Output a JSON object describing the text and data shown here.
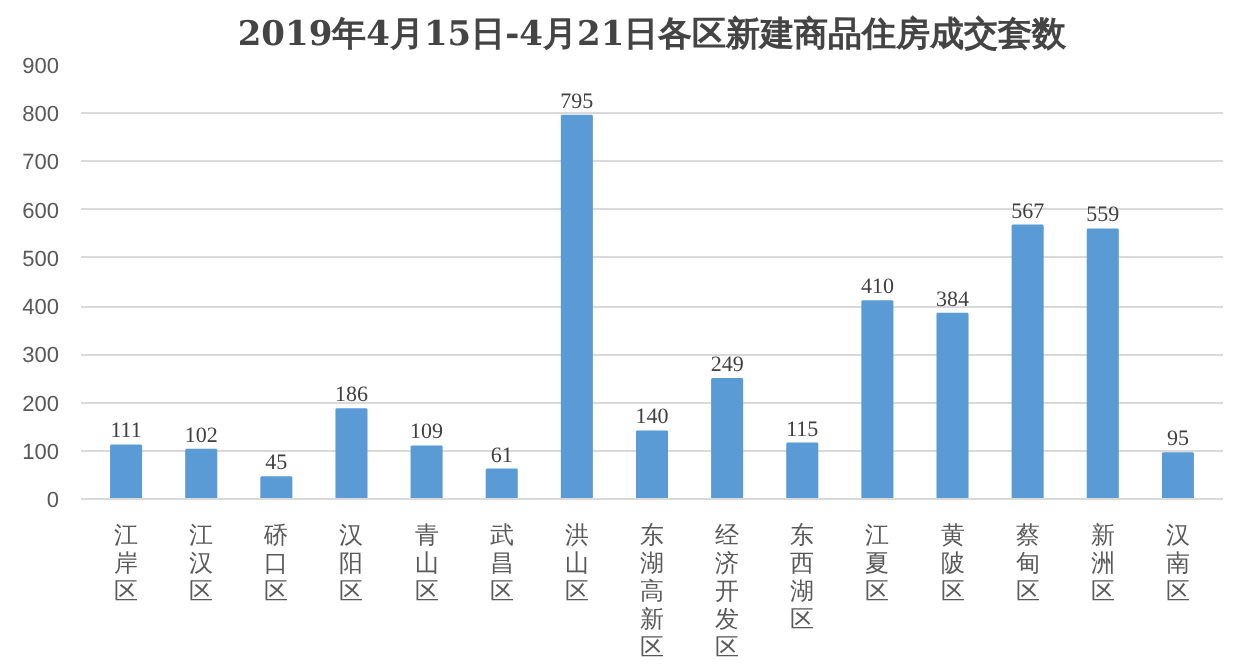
{
  "chart_data": {
    "type": "bar",
    "title": "2019年4月15日-4月21日各区新建商品住房成交套数",
    "categories": [
      "江岸区",
      "江汉区",
      "硚口区",
      "汉阳区",
      "青山区",
      "武昌区",
      "洪山区",
      "东湖高新区",
      "经济开发区",
      "东西湖区",
      "江夏区",
      "黄陂区",
      "蔡甸区",
      "新洲区",
      "汉南区"
    ],
    "values": [
      111,
      102,
      45,
      186,
      109,
      61,
      795,
      140,
      249,
      115,
      410,
      384,
      567,
      559,
      95
    ],
    "color": "#5b9bd5",
    "ylim": [
      0,
      900
    ],
    "yticks": [
      0,
      100,
      200,
      300,
      400,
      500,
      600,
      700,
      800,
      900
    ],
    "grid": "y",
    "data_labels": true
  }
}
